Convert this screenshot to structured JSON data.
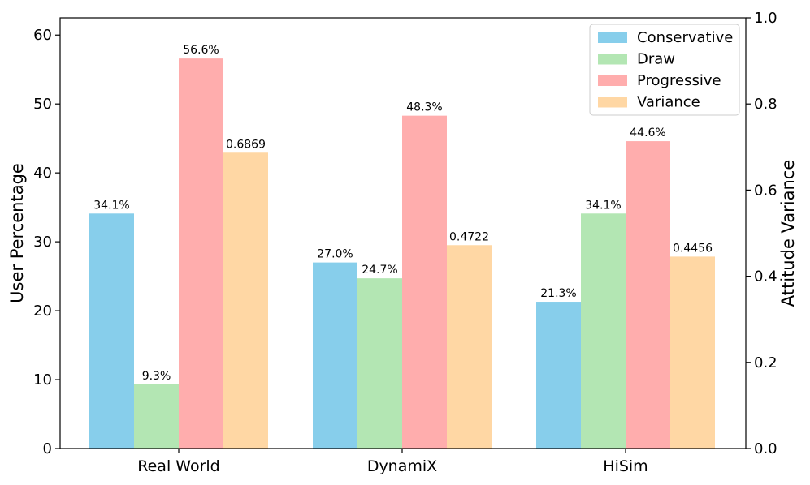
{
  "chart_data": {
    "type": "bar",
    "categories": [
      "Real World",
      "DynamiX",
      "HiSim"
    ],
    "ylabel_left": "User Percentage",
    "ylabel_right": "Attitude Variance",
    "ylim_left": [
      0,
      62.5
    ],
    "ylim_right": [
      0,
      1.0
    ],
    "yticks_left": [
      0,
      10,
      20,
      30,
      40,
      50,
      60
    ],
    "yticks_right": [
      "0.0",
      "0.2",
      "0.4",
      "0.6",
      "0.8",
      "1.0"
    ],
    "legend_position": "top-right",
    "grid": false,
    "series": [
      {
        "name": "Conservative",
        "axis": "left",
        "color": "#87ceeb",
        "values": [
          34.1,
          27.0,
          21.3
        ],
        "labels": [
          "34.1%",
          "27.0%",
          "21.3%"
        ]
      },
      {
        "name": "Draw",
        "axis": "left",
        "color": "#b3e6b3",
        "values": [
          9.3,
          24.7,
          34.1
        ],
        "labels": [
          "9.3%",
          "24.7%",
          "34.1%"
        ]
      },
      {
        "name": "Progressive",
        "axis": "left",
        "color": "#ffadad",
        "values": [
          56.6,
          48.3,
          44.6
        ],
        "labels": [
          "56.6%",
          "48.3%",
          "44.6%"
        ]
      },
      {
        "name": "Variance",
        "axis": "right",
        "color": "#ffd7a4",
        "values": [
          0.6869,
          0.4722,
          0.4456
        ],
        "labels": [
          "0.6869",
          "0.4722",
          "0.4456"
        ]
      }
    ]
  }
}
